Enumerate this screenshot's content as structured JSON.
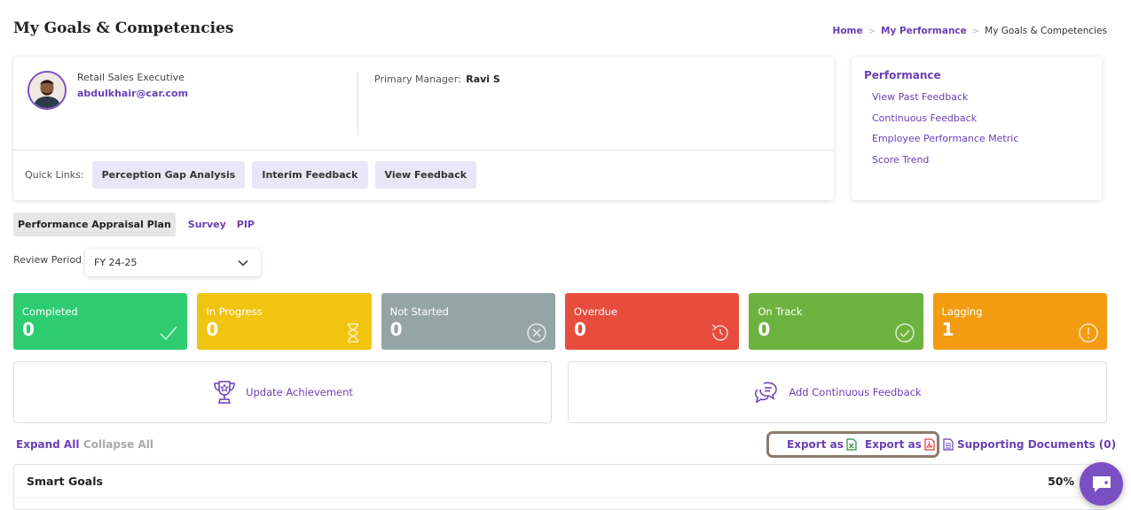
{
  "page": {
    "title": "My Goals & Competencies"
  },
  "breadcrumb": {
    "home": "Home",
    "section": "My Performance",
    "current": "My Goals & Competencies",
    "separator": ">"
  },
  "profile": {
    "role": "Retail Sales Executive",
    "email": "abdulkhair@car.com",
    "manager_label": "Primary Manager:",
    "manager_name": "Ravi S"
  },
  "quick_links": {
    "label": "Quick Links:",
    "items": [
      "Perception Gap Analysis",
      "Interim Feedback",
      "View Feedback"
    ]
  },
  "performance_panel": {
    "title": "Performance",
    "links": [
      "View Past Feedback",
      "Continuous Feedback",
      "Employee Performance Metric",
      "Score Trend"
    ]
  },
  "tabs": [
    "Performance Appraisal Plan",
    "Survey",
    "PIP"
  ],
  "review_period": {
    "label": "Review Period",
    "value": "FY 24-25"
  },
  "status_tiles": [
    {
      "label": "Completed",
      "count": "0",
      "color": "#2ecc71",
      "icon": "check-icon"
    },
    {
      "label": "In Progress",
      "count": "0",
      "color": "#f1c40f",
      "icon": "hourglass-icon"
    },
    {
      "label": "Not Started",
      "count": "0",
      "color": "#95a5a6",
      "icon": "x-circle-icon"
    },
    {
      "label": "Overdue",
      "count": "0",
      "color": "#e74c3c",
      "icon": "history-icon"
    },
    {
      "label": "On Track",
      "count": "0",
      "color": "#6db33f",
      "icon": "check-circle-icon"
    },
    {
      "label": "Lagging",
      "count": "1",
      "color": "#f39c12",
      "icon": "alert-circle-icon"
    }
  ],
  "actions": {
    "update_achievement": "Update Achievement",
    "add_feedback": "Add Continuous Feedback"
  },
  "controls": {
    "expand_all": "Expand All",
    "collapse_all": "Collapse All",
    "export_excel": "Export as",
    "export_pdf": "Export as",
    "supporting_documents": "Supporting Documents (0)"
  },
  "goals": {
    "title": "Smart Goals",
    "percent": "50%"
  },
  "colors": {
    "accent": "#6a3fb5",
    "chat": "#7b4fc4"
  }
}
